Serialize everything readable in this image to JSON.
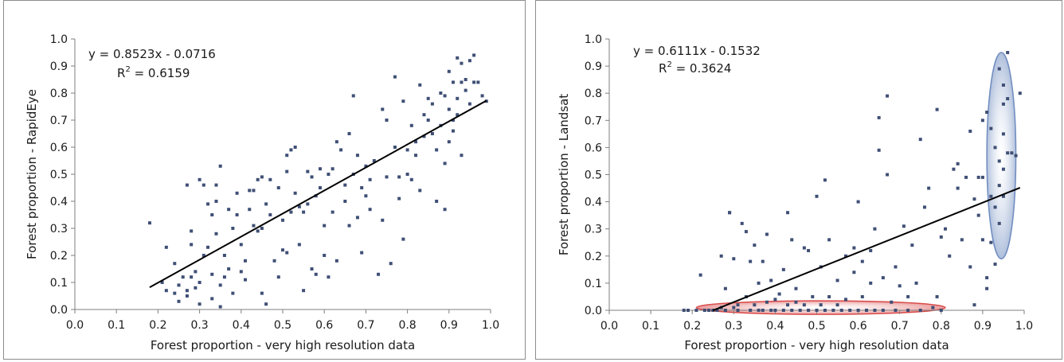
{
  "chart_data": [
    {
      "type": "scatter",
      "xlabel": "Forest proportion - very high resolution data",
      "ylabel": "Forest proportion - RapidEye",
      "xlim": [
        0.0,
        1.0
      ],
      "ylim": [
        0.0,
        1.0
      ],
      "xticks": [
        "0.0",
        "0.1",
        "0.2",
        "0.3",
        "0.4",
        "0.5",
        "0.6",
        "0.7",
        "0.8",
        "0.9",
        "1.0"
      ],
      "yticks": [
        "0.0",
        "0.1",
        "0.2",
        "0.3",
        "0.4",
        "0.5",
        "0.6",
        "0.7",
        "0.8",
        "0.9",
        "1.0"
      ],
      "grid": false,
      "marker_color": "#3f4f75",
      "equation": "y = 0.8523x - 0.0716",
      "r2_label": "R",
      "r2_sup": "2",
      "r2_value": " = 0.6159",
      "trendline": {
        "slope": 0.8523,
        "intercept": -0.0716,
        "x_range": [
          0.18,
          0.99
        ]
      },
      "points": [
        [
          0.18,
          0.32
        ],
        [
          0.21,
          0.1
        ],
        [
          0.22,
          0.23
        ],
        [
          0.22,
          0.07
        ],
        [
          0.24,
          0.17
        ],
        [
          0.24,
          0.06
        ],
        [
          0.25,
          0.03
        ],
        [
          0.25,
          0.09
        ],
        [
          0.26,
          0.12
        ],
        [
          0.27,
          0.07
        ],
        [
          0.27,
          0.05
        ],
        [
          0.27,
          0.46
        ],
        [
          0.28,
          0.29
        ],
        [
          0.28,
          0.24
        ],
        [
          0.28,
          0.12
        ],
        [
          0.29,
          0.08
        ],
        [
          0.29,
          0.14
        ],
        [
          0.3,
          0.1
        ],
        [
          0.3,
          0.02
        ],
        [
          0.3,
          0.48
        ],
        [
          0.31,
          0.2
        ],
        [
          0.31,
          0.46
        ],
        [
          0.32,
          0.23
        ],
        [
          0.32,
          0.39
        ],
        [
          0.33,
          0.35
        ],
        [
          0.33,
          0.13
        ],
        [
          0.33,
          0.04
        ],
        [
          0.34,
          0.4
        ],
        [
          0.34,
          0.28
        ],
        [
          0.34,
          0.46
        ],
        [
          0.35,
          0.53
        ],
        [
          0.35,
          0.09
        ],
        [
          0.35,
          0.01
        ],
        [
          0.36,
          0.12
        ],
        [
          0.36,
          0.2
        ],
        [
          0.37,
          0.37
        ],
        [
          0.37,
          0.15
        ],
        [
          0.38,
          0.3
        ],
        [
          0.38,
          0.06
        ],
        [
          0.39,
          0.35
        ],
        [
          0.39,
          0.43
        ],
        [
          0.4,
          0.14
        ],
        [
          0.4,
          0.24
        ],
        [
          0.41,
          0.18
        ],
        [
          0.41,
          0.11
        ],
        [
          0.42,
          0.37
        ],
        [
          0.42,
          0.44
        ],
        [
          0.43,
          0.44
        ],
        [
          0.43,
          0.31
        ],
        [
          0.44,
          0.48
        ],
        [
          0.44,
          0.29
        ],
        [
          0.45,
          0.49
        ],
        [
          0.45,
          0.3
        ],
        [
          0.45,
          0.06
        ],
        [
          0.46,
          0.39
        ],
        [
          0.46,
          0.02
        ],
        [
          0.47,
          0.48
        ],
        [
          0.47,
          0.35
        ],
        [
          0.48,
          0.18
        ],
        [
          0.49,
          0.45
        ],
        [
          0.49,
          0.12
        ],
        [
          0.5,
          0.22
        ],
        [
          0.5,
          0.33
        ],
        [
          0.51,
          0.51
        ],
        [
          0.51,
          0.57
        ],
        [
          0.51,
          0.21
        ],
        [
          0.52,
          0.59
        ],
        [
          0.52,
          0.36
        ],
        [
          0.53,
          0.6
        ],
        [
          0.53,
          0.43
        ],
        [
          0.54,
          0.38
        ],
        [
          0.54,
          0.24
        ],
        [
          0.55,
          0.36
        ],
        [
          0.55,
          0.07
        ],
        [
          0.56,
          0.51
        ],
        [
          0.56,
          0.39
        ],
        [
          0.57,
          0.49
        ],
        [
          0.57,
          0.15
        ],
        [
          0.58,
          0.42
        ],
        [
          0.58,
          0.13
        ],
        [
          0.59,
          0.45
        ],
        [
          0.59,
          0.52
        ],
        [
          0.6,
          0.2
        ],
        [
          0.6,
          0.31
        ],
        [
          0.61,
          0.5
        ],
        [
          0.61,
          0.12
        ],
        [
          0.62,
          0.52
        ],
        [
          0.62,
          0.36
        ],
        [
          0.63,
          0.62
        ],
        [
          0.63,
          0.18
        ],
        [
          0.64,
          0.59
        ],
        [
          0.65,
          0.46
        ],
        [
          0.65,
          0.4
        ],
        [
          0.66,
          0.65
        ],
        [
          0.66,
          0.31
        ],
        [
          0.67,
          0.79
        ],
        [
          0.67,
          0.5
        ],
        [
          0.68,
          0.57
        ],
        [
          0.68,
          0.34
        ],
        [
          0.69,
          0.45
        ],
        [
          0.69,
          0.21
        ],
        [
          0.7,
          0.42
        ],
        [
          0.7,
          0.53
        ],
        [
          0.71,
          0.48
        ],
        [
          0.71,
          0.37
        ],
        [
          0.72,
          0.55
        ],
        [
          0.73,
          0.13
        ],
        [
          0.74,
          0.74
        ],
        [
          0.74,
          0.33
        ],
        [
          0.75,
          0.7
        ],
        [
          0.75,
          0.49
        ],
        [
          0.76,
          0.17
        ],
        [
          0.77,
          0.86
        ],
        [
          0.77,
          0.6
        ],
        [
          0.78,
          0.41
        ],
        [
          0.78,
          0.49
        ],
        [
          0.79,
          0.77
        ],
        [
          0.79,
          0.26
        ],
        [
          0.8,
          0.59
        ],
        [
          0.8,
          0.5
        ],
        [
          0.81,
          0.68
        ],
        [
          0.81,
          0.48
        ],
        [
          0.82,
          0.62
        ],
        [
          0.82,
          0.57
        ],
        [
          0.83,
          0.83
        ],
        [
          0.83,
          0.44
        ],
        [
          0.84,
          0.72
        ],
        [
          0.84,
          0.64
        ],
        [
          0.85,
          0.78
        ],
        [
          0.85,
          0.7
        ],
        [
          0.86,
          0.76
        ],
        [
          0.86,
          0.65
        ],
        [
          0.87,
          0.59
        ],
        [
          0.87,
          0.4
        ],
        [
          0.88,
          0.8
        ],
        [
          0.88,
          0.68
        ],
        [
          0.89,
          0.79
        ],
        [
          0.89,
          0.54
        ],
        [
          0.89,
          0.37
        ],
        [
          0.9,
          0.88
        ],
        [
          0.9,
          0.74
        ],
        [
          0.9,
          0.62
        ],
        [
          0.91,
          0.84
        ],
        [
          0.91,
          0.7
        ],
        [
          0.91,
          0.66
        ],
        [
          0.92,
          0.93
        ],
        [
          0.92,
          0.78
        ],
        [
          0.92,
          0.72
        ],
        [
          0.93,
          0.91
        ],
        [
          0.93,
          0.84
        ],
        [
          0.93,
          0.57
        ],
        [
          0.94,
          0.85
        ],
        [
          0.94,
          0.81
        ],
        [
          0.95,
          0.92
        ],
        [
          0.95,
          0.76
        ],
        [
          0.96,
          0.94
        ],
        [
          0.96,
          0.84
        ],
        [
          0.97,
          0.84
        ],
        [
          0.98,
          0.79
        ],
        [
          0.99,
          0.77
        ]
      ]
    },
    {
      "type": "scatter",
      "xlabel": "Forest proportion - very high resolution data",
      "ylabel": "Forest proportion - Landsat",
      "xlim": [
        0.0,
        1.0
      ],
      "ylim": [
        0.0,
        1.0
      ],
      "xticks": [
        "0.0",
        "0.1",
        "0.2",
        "0.3",
        "0.4",
        "0.5",
        "0.6",
        "0.7",
        "0.8",
        "0.9",
        "1.0"
      ],
      "yticks": [
        "0.0",
        "0.1",
        "0.2",
        "0.3",
        "0.4",
        "0.5",
        "0.6",
        "0.7",
        "0.8",
        "0.9",
        "1.0"
      ],
      "grid": false,
      "marker_color": "#3f4f75",
      "equation": "y = 0.6111x - 0.1532",
      "r2_label": "R",
      "r2_sup": "2",
      "r2_value": " = 0.3624",
      "trendline": {
        "slope": 0.6111,
        "intercept": -0.1532,
        "x_range": [
          0.25,
          0.99
        ]
      },
      "highlights": [
        {
          "shape": "ellipse",
          "color": "#d94a4a",
          "center": [
            0.51,
            0.01
          ],
          "rx": 0.3,
          "ry": 0.025
        },
        {
          "shape": "ellipse",
          "color": "#6f8cbf",
          "center": [
            0.945,
            0.57
          ],
          "rx": 0.035,
          "ry": 0.38
        }
      ],
      "points": [
        [
          0.18,
          0.0
        ],
        [
          0.19,
          0.0
        ],
        [
          0.21,
          0.0
        ],
        [
          0.22,
          0.13
        ],
        [
          0.23,
          0.0
        ],
        [
          0.24,
          0.0
        ],
        [
          0.25,
          0.0
        ],
        [
          0.26,
          0.0
        ],
        [
          0.27,
          0.01
        ],
        [
          0.27,
          0.2
        ],
        [
          0.28,
          0.08
        ],
        [
          0.28,
          0.0
        ],
        [
          0.29,
          0.36
        ],
        [
          0.29,
          0.36
        ],
        [
          0.3,
          0.19
        ],
        [
          0.3,
          0.01
        ],
        [
          0.31,
          0.0
        ],
        [
          0.31,
          0.02
        ],
        [
          0.32,
          0.32
        ],
        [
          0.33,
          0.05
        ],
        [
          0.33,
          0.29
        ],
        [
          0.34,
          0.18
        ],
        [
          0.34,
          0.0
        ],
        [
          0.35,
          0.24
        ],
        [
          0.35,
          0.02
        ],
        [
          0.36,
          0.0
        ],
        [
          0.36,
          0.1
        ],
        [
          0.37,
          0.0
        ],
        [
          0.37,
          0.18
        ],
        [
          0.38,
          0.28
        ],
        [
          0.38,
          0.03
        ],
        [
          0.39,
          0.0
        ],
        [
          0.39,
          0.11
        ],
        [
          0.4,
          0.0
        ],
        [
          0.4,
          0.04
        ],
        [
          0.41,
          0.06
        ],
        [
          0.42,
          0.15
        ],
        [
          0.42,
          0.0
        ],
        [
          0.43,
          0.36
        ],
        [
          0.43,
          0.02
        ],
        [
          0.44,
          0.26
        ],
        [
          0.44,
          0.0
        ],
        [
          0.45,
          0.08
        ],
        [
          0.45,
          0.03
        ],
        [
          0.46,
          0.0
        ],
        [
          0.47,
          0.23
        ],
        [
          0.47,
          0.02
        ],
        [
          0.48,
          0.22
        ],
        [
          0.48,
          0.0
        ],
        [
          0.49,
          0.05
        ],
        [
          0.5,
          0.0
        ],
        [
          0.5,
          0.42
        ],
        [
          0.51,
          0.16
        ],
        [
          0.51,
          0.02
        ],
        [
          0.52,
          0.48
        ],
        [
          0.52,
          0.0
        ],
        [
          0.53,
          0.05
        ],
        [
          0.53,
          0.26
        ],
        [
          0.54,
          0.0
        ],
        [
          0.55,
          0.11
        ],
        [
          0.55,
          0.02
        ],
        [
          0.56,
          0.0
        ],
        [
          0.57,
          0.2
        ],
        [
          0.57,
          0.04
        ],
        [
          0.58,
          0.0
        ],
        [
          0.59,
          0.14
        ],
        [
          0.59,
          0.23
        ],
        [
          0.6,
          0.4
        ],
        [
          0.6,
          0.0
        ],
        [
          0.61,
          0.05
        ],
        [
          0.61,
          0.18
        ],
        [
          0.62,
          0.0
        ],
        [
          0.63,
          0.22
        ],
        [
          0.63,
          0.1
        ],
        [
          0.64,
          0.3
        ],
        [
          0.64,
          0.0
        ],
        [
          0.65,
          0.59
        ],
        [
          0.65,
          0.71
        ],
        [
          0.66,
          0.12
        ],
        [
          0.66,
          0.0
        ],
        [
          0.67,
          0.79
        ],
        [
          0.67,
          0.5
        ],
        [
          0.68,
          0.03
        ],
        [
          0.69,
          0.16
        ],
        [
          0.69,
          0.0
        ],
        [
          0.7,
          0.09
        ],
        [
          0.71,
          0.31
        ],
        [
          0.72,
          0.0
        ],
        [
          0.72,
          0.05
        ],
        [
          0.73,
          0.24
        ],
        [
          0.74,
          0.1
        ],
        [
          0.75,
          0.63
        ],
        [
          0.75,
          0.0
        ],
        [
          0.76,
          0.38
        ],
        [
          0.77,
          0.45
        ],
        [
          0.78,
          0.01
        ],
        [
          0.79,
          0.74
        ],
        [
          0.79,
          0.05
        ],
        [
          0.8,
          0.27
        ],
        [
          0.8,
          0.0
        ],
        [
          0.81,
          0.3
        ],
        [
          0.82,
          0.2
        ],
        [
          0.83,
          0.52
        ],
        [
          0.84,
          0.54
        ],
        [
          0.84,
          0.45
        ],
        [
          0.85,
          0.26
        ],
        [
          0.86,
          0.49
        ],
        [
          0.87,
          0.66
        ],
        [
          0.87,
          0.16
        ],
        [
          0.88,
          0.41
        ],
        [
          0.88,
          0.02
        ],
        [
          0.89,
          0.35
        ],
        [
          0.89,
          0.49
        ],
        [
          0.9,
          0.7
        ],
        [
          0.9,
          0.49
        ],
        [
          0.9,
          0.26
        ],
        [
          0.91,
          0.73
        ],
        [
          0.91,
          0.12
        ],
        [
          0.91,
          0.08
        ],
        [
          0.92,
          0.67
        ],
        [
          0.92,
          0.42
        ],
        [
          0.92,
          0.25
        ],
        [
          0.93,
          0.6
        ],
        [
          0.93,
          0.38
        ],
        [
          0.93,
          0.17
        ],
        [
          0.94,
          0.89
        ],
        [
          0.94,
          0.55
        ],
        [
          0.94,
          0.46
        ],
        [
          0.94,
          0.32
        ],
        [
          0.95,
          0.83
        ],
        [
          0.95,
          0.76
        ],
        [
          0.95,
          0.65
        ],
        [
          0.95,
          0.52
        ],
        [
          0.95,
          0.42
        ],
        [
          0.96,
          0.78
        ],
        [
          0.96,
          0.58
        ],
        [
          0.96,
          0.95
        ],
        [
          0.97,
          0.58
        ],
        [
          0.98,
          0.57
        ],
        [
          0.99,
          0.8
        ]
      ]
    }
  ]
}
